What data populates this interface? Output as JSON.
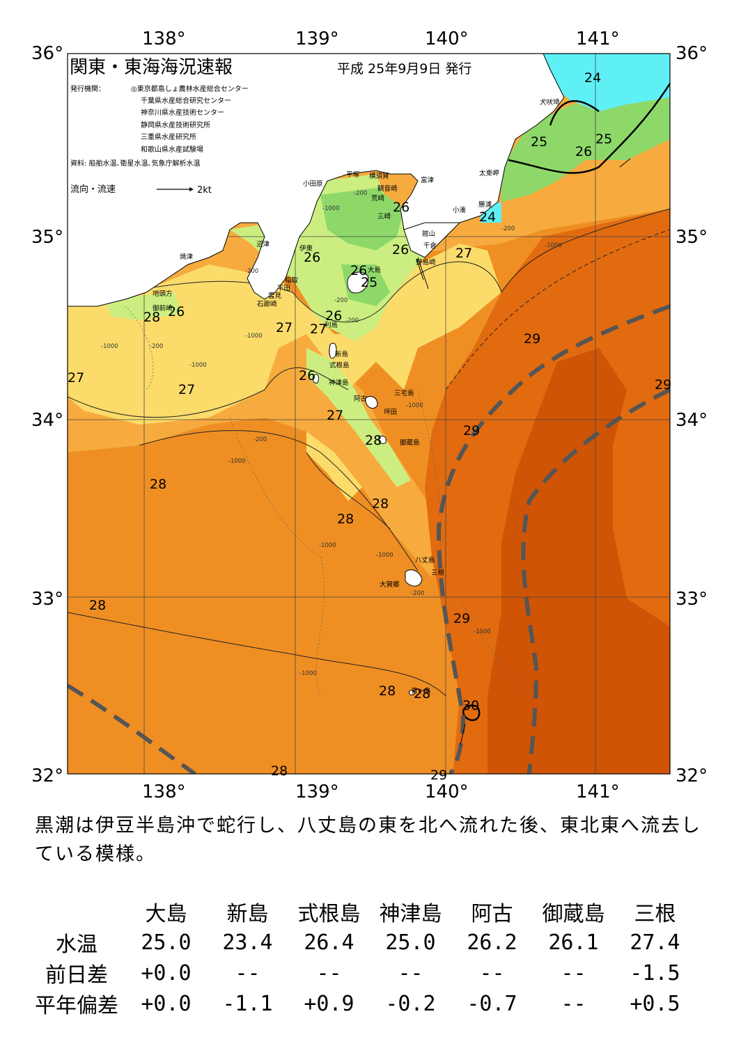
{
  "map": {
    "title": "関東・東海海況速報",
    "issue_date": "平成 25年9月9日 発行",
    "issuer_label": "発行機関：",
    "issuers": [
      "◎東京都島しょ農林水産総合センター",
      "千葉県水産総合研究センター",
      "神奈川県水産技術センター",
      "静岡県水産技術研究所",
      "三重県水産研究所",
      "和歌山県水産試験場"
    ],
    "source": "資料: 船舶水温､衛星水温､気象庁解析水温",
    "current_legend_label": "流向・流速",
    "current_legend_value": "2kt",
    "lon_labels": [
      "138°",
      "139°",
      "140°",
      "141°"
    ],
    "lat_labels": [
      "36°",
      "35°",
      "34°",
      "33°",
      "32°"
    ],
    "isotherm_labels": [
      "24",
      "25",
      "26",
      "25",
      "24",
      "26",
      "26",
      "26",
      "25",
      "27",
      "26",
      "28",
      "26",
      "27",
      "26",
      "27",
      "29",
      "27",
      "27",
      "27",
      "29",
      "26",
      "28",
      "28",
      "28",
      "28",
      "29",
      "28",
      "28",
      "30",
      "28",
      "29",
      "28",
      "29"
    ],
    "bathymetry_labels": [
      "-200",
      "-1000",
      "-200",
      "-1000",
      "-200",
      "-200",
      "-200",
      "-1000",
      "-1000",
      "-1000",
      "-1000",
      "-200",
      "-1000",
      "-1000",
      "-1000",
      "-1000",
      "-200",
      "-1000",
      "-200"
    ],
    "places": [
      "犬吠埼",
      "太東岬",
      "勝浦",
      "小湊",
      "館山",
      "千倉",
      "野島崎",
      "富津",
      "観音崎",
      "荒崎",
      "三崎",
      "横須賀",
      "平塚",
      "小田原",
      "沼津",
      "伊東",
      "稲取",
      "下田",
      "雲見",
      "石廊崎",
      "焼津",
      "地頭方",
      "御前崎",
      "大島",
      "利島",
      "新島",
      "式根島",
      "神津島",
      "三宅島",
      "阿古",
      "坪田",
      "御蔵島",
      "八丈島",
      "三根",
      "大賀郷",
      "青ヶ島"
    ],
    "colors": {
      "cyan": "#5ff0f6",
      "green": "#8ed86a",
      "light_green": "#ccee80",
      "yellow": "#fbdc6b",
      "light_orange": "#f7ab3e",
      "orange": "#ef8f23",
      "dark_orange": "#e26b10",
      "deep_orange": "#cf5406",
      "land": "#ffffff",
      "kuroshio_axis": "#555555"
    }
  },
  "summary": "黒潮は伊豆半島沖で蛇行し、八丈島の東を北へ流れた後、東北東へ流去している模様。",
  "table": {
    "columns": [
      "大島",
      "新島",
      "式根島",
      "神津島",
      "阿古",
      "御蔵島",
      "三根"
    ],
    "rows": [
      {
        "label": "水温",
        "values": [
          "25.0",
          "23.4",
          "26.4",
          "25.0",
          "26.2",
          "26.1",
          "27.4"
        ]
      },
      {
        "label": "前日差",
        "values": [
          "+0.0",
          "--",
          "--",
          "--",
          "--",
          "--",
          "-1.5"
        ]
      },
      {
        "label": "平年偏差",
        "values": [
          "+0.0",
          "-1.1",
          "+0.9",
          "-0.2",
          "-0.7",
          "--",
          "+0.5"
        ]
      }
    ]
  }
}
